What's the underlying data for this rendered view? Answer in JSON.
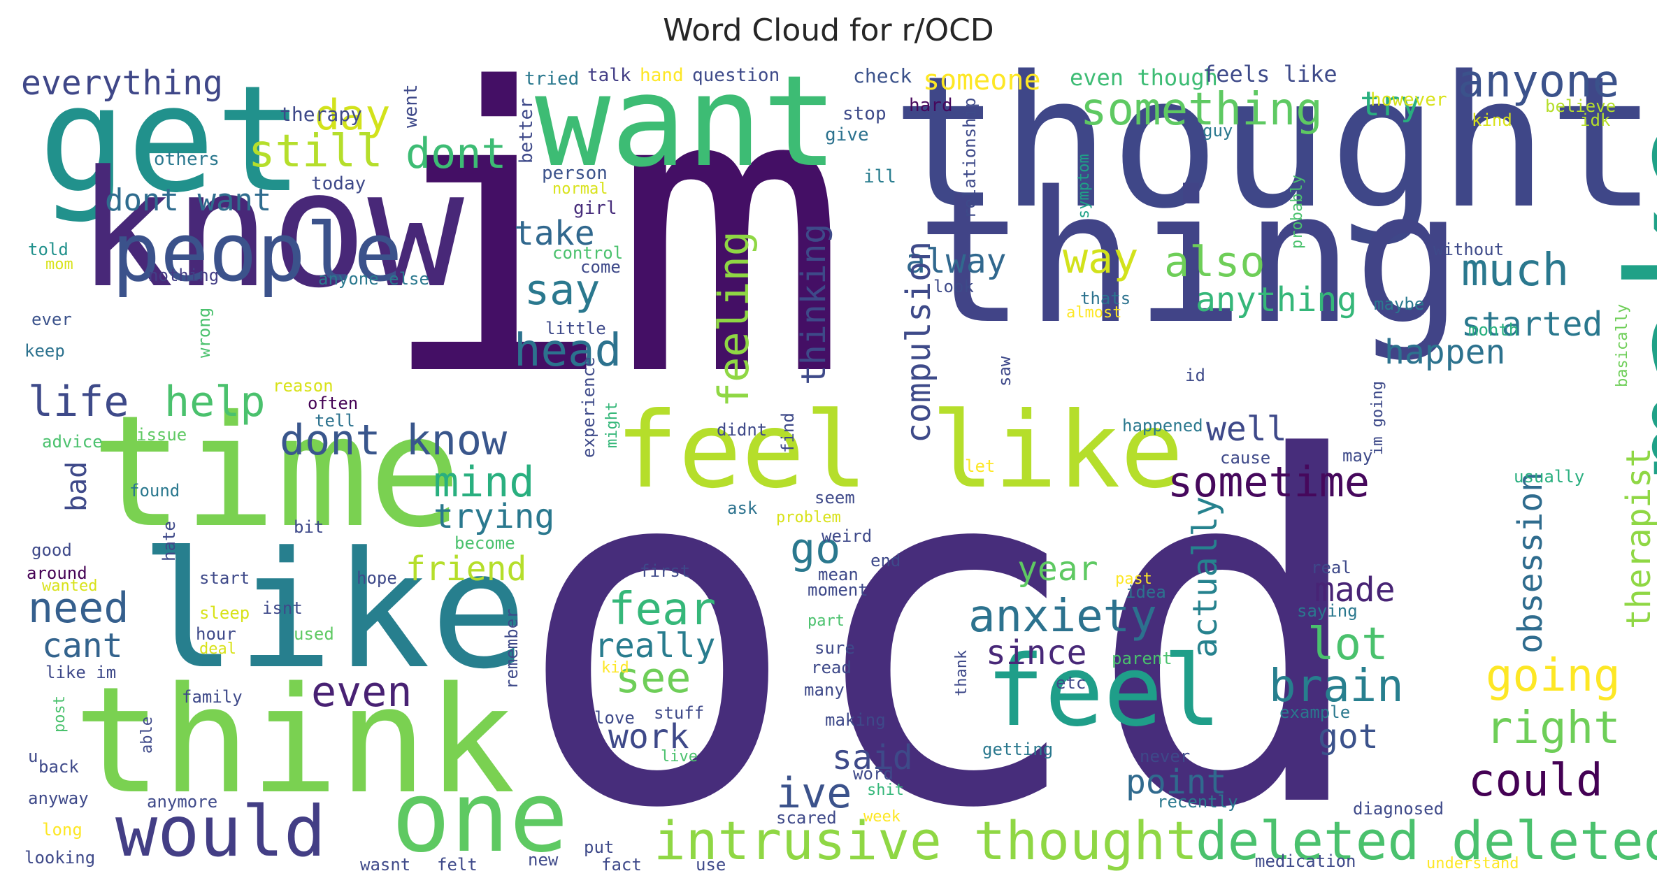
{
  "chart_data": {
    "type": "wordcloud",
    "title": "Word Cloud for r/OCD",
    "words": [
      {
        "text": "ocd",
        "c": "#472d7b"
      },
      {
        "text": "im",
        "c": "#440f65"
      },
      {
        "text": "thought",
        "c": "#3f4788"
      },
      {
        "text": "want",
        "c": "#3dbc74"
      },
      {
        "text": "get",
        "c": "#21918c"
      },
      {
        "text": "know",
        "c": "#482878"
      },
      {
        "text": "thing",
        "c": "#414487"
      },
      {
        "text": "make",
        "c": "#1fa187"
      },
      {
        "text": "time",
        "c": "#7ad151"
      },
      {
        "text": "like",
        "c": "#277f8e"
      },
      {
        "text": "think",
        "c": "#7ad151"
      },
      {
        "text": "feel like",
        "c": "#b5de2b"
      },
      {
        "text": "feel",
        "c": "#1f9e89"
      },
      {
        "text": "one",
        "c": "#5ec962"
      },
      {
        "text": "people",
        "c": "#3b528b"
      },
      {
        "text": "would",
        "c": "#433e85"
      },
      {
        "text": "intrusive thought",
        "c": "#8fd744"
      },
      {
        "text": "deleted deleted",
        "c": "#4ac16d"
      },
      {
        "text": "anxiety",
        "c": "#2c728e"
      },
      {
        "text": "something",
        "c": "#5ec962"
      },
      {
        "text": "anyone",
        "c": "#3b528b"
      },
      {
        "text": "everything",
        "c": "#3f4788"
      },
      {
        "text": "day",
        "c": "#d2e21b"
      },
      {
        "text": "still",
        "c": "#b5de2b"
      },
      {
        "text": "dont",
        "c": "#3dbc74"
      },
      {
        "text": "try",
        "c": "#29af7f"
      },
      {
        "text": "much",
        "c": "#2a788e"
      },
      {
        "text": "also",
        "c": "#6ece58"
      },
      {
        "text": "way",
        "c": "#d2e21b"
      },
      {
        "text": "say",
        "c": "#2a788e"
      },
      {
        "text": "head",
        "c": "#2c728e"
      },
      {
        "text": "take",
        "c": "#31688e"
      },
      {
        "text": "life",
        "c": "#3e4a89"
      },
      {
        "text": "help",
        "c": "#4ac16d"
      },
      {
        "text": "dont know",
        "c": "#39568c"
      },
      {
        "text": "mind",
        "c": "#29af7f"
      },
      {
        "text": "sometime",
        "c": "#46085c"
      },
      {
        "text": "need",
        "c": "#355f8d"
      },
      {
        "text": "trying",
        "c": "#2a788e"
      },
      {
        "text": "friend",
        "c": "#b5de2b"
      },
      {
        "text": "go",
        "c": "#2a788e"
      },
      {
        "text": "year",
        "c": "#5ec962"
      },
      {
        "text": "fear",
        "c": "#35b779"
      },
      {
        "text": "lot",
        "c": "#4ac16d"
      },
      {
        "text": "brain",
        "c": "#277f8e"
      },
      {
        "text": "going",
        "c": "#fde725"
      },
      {
        "text": "right",
        "c": "#6ece58"
      },
      {
        "text": "could",
        "c": "#440154"
      },
      {
        "text": "see",
        "c": "#6ece58"
      },
      {
        "text": "even",
        "c": "#482173"
      },
      {
        "text": "since",
        "c": "#482878"
      },
      {
        "text": "cant",
        "c": "#33638d"
      },
      {
        "text": "really",
        "c": "#287c8e"
      },
      {
        "text": "work",
        "c": "#3e4989"
      },
      {
        "text": "ive",
        "c": "#3b528b"
      },
      {
        "text": "said",
        "c": "#3e4a89"
      },
      {
        "text": "point",
        "c": "#306a8e"
      },
      {
        "text": "made",
        "c": "#482475"
      },
      {
        "text": "got",
        "c": "#3b528b"
      },
      {
        "text": "well",
        "c": "#3e4989"
      },
      {
        "text": "happen",
        "c": "#2c728e"
      },
      {
        "text": "started",
        "c": "#2a788e"
      },
      {
        "text": "anything",
        "c": "#35b779"
      },
      {
        "text": "alway",
        "c": "#31688e"
      },
      {
        "text": "dont want",
        "c": "#2f6c8e"
      },
      {
        "text": "compulsion",
        "c": "#3e4a89"
      },
      {
        "text": "feeling",
        "c": "#8fd744"
      },
      {
        "text": "thinking",
        "c": "#3e4a89"
      },
      {
        "text": "actually",
        "c": "#26828e"
      },
      {
        "text": "obsession",
        "c": "#2f6c8e"
      },
      {
        "text": "therapist",
        "c": "#8fd744"
      },
      {
        "text": "bad",
        "c": "#3e4989"
      },
      {
        "text": "someone",
        "c": "#fde725"
      },
      {
        "text": "even though",
        "c": "#3dbc74"
      },
      {
        "text": "feels like",
        "c": "#3e4a89"
      },
      {
        "text": "however",
        "c": "#d8e219"
      },
      {
        "text": "tried",
        "c": "#2a788e"
      },
      {
        "text": "talk",
        "c": "#433e85"
      },
      {
        "text": "hand",
        "c": "#fde725"
      },
      {
        "text": "question",
        "c": "#3e4a89"
      },
      {
        "text": "check",
        "c": "#3b528b"
      },
      {
        "text": "hard",
        "c": "#46085c"
      },
      {
        "text": "stop",
        "c": "#3e4a89"
      },
      {
        "text": "give",
        "c": "#2c728e"
      },
      {
        "text": "therapy",
        "c": "#3e4989"
      },
      {
        "text": "went",
        "c": "#3e4989"
      },
      {
        "text": "others",
        "c": "#2a788e"
      },
      {
        "text": "better",
        "c": "#3e4989"
      },
      {
        "text": "person",
        "c": "#3b528b"
      },
      {
        "text": "ill",
        "c": "#287c8e"
      },
      {
        "text": "today",
        "c": "#3e4989"
      },
      {
        "text": "normal",
        "c": "#d8e219"
      },
      {
        "text": "girl",
        "c": "#472d7b"
      },
      {
        "text": "relationship",
        "c": "#3e4a89"
      },
      {
        "text": "symptom",
        "c": "#1fa187"
      },
      {
        "text": "guy",
        "c": "#2a788e"
      },
      {
        "text": "believe",
        "c": "#b5de2b"
      },
      {
        "text": "kind",
        "c": "#d8e219"
      },
      {
        "text": "idk",
        "c": "#b5de2b"
      },
      {
        "text": "told",
        "c": "#21918c"
      },
      {
        "text": "mom",
        "c": "#d8e219"
      },
      {
        "text": "control",
        "c": "#4ac16d"
      },
      {
        "text": "come",
        "c": "#3e4989"
      },
      {
        "text": "nothing",
        "c": "#433e85"
      },
      {
        "text": "anyone else",
        "c": "#2a788e"
      },
      {
        "text": "probably",
        "c": "#4ac16d"
      },
      {
        "text": "without",
        "c": "#3e4a89"
      },
      {
        "text": "look",
        "c": "#3e4a89"
      },
      {
        "text": "thats",
        "c": "#2c728e"
      },
      {
        "text": "almost",
        "c": "#fde725"
      },
      {
        "text": "maybe",
        "c": "#2a788e"
      },
      {
        "text": "month",
        "c": "#29af7f"
      },
      {
        "text": "ever",
        "c": "#3b528b"
      },
      {
        "text": "keep",
        "c": "#2c728e"
      },
      {
        "text": "wrong",
        "c": "#4ac16d"
      },
      {
        "text": "little",
        "c": "#3e4989"
      },
      {
        "text": "reason",
        "c": "#d8e219"
      },
      {
        "text": "often",
        "c": "#440154"
      },
      {
        "text": "tell",
        "c": "#2c728e"
      },
      {
        "text": "experience",
        "c": "#3e4a89"
      },
      {
        "text": "might",
        "c": "#35b779"
      },
      {
        "text": "saw",
        "c": "#3e4989"
      },
      {
        "text": "id",
        "c": "#3e4a89"
      },
      {
        "text": "im going",
        "c": "#3e4a89"
      },
      {
        "text": "basically",
        "c": "#6ece58"
      },
      {
        "text": "advice",
        "c": "#4ac16d"
      },
      {
        "text": "issue",
        "c": "#5ec962"
      },
      {
        "text": "didnt",
        "c": "#3e4989"
      },
      {
        "text": "find",
        "c": "#3e4989"
      },
      {
        "text": "happened",
        "c": "#2a788e"
      },
      {
        "text": "may",
        "c": "#3e4a89"
      },
      {
        "text": "cause",
        "c": "#3e4989"
      },
      {
        "text": "let",
        "c": "#fde725"
      },
      {
        "text": "usually",
        "c": "#29af7f"
      },
      {
        "text": "found",
        "c": "#2a788e"
      },
      {
        "text": "hate",
        "c": "#3e4989"
      },
      {
        "text": "seem",
        "c": "#3e4989"
      },
      {
        "text": "ask",
        "c": "#2c728e"
      },
      {
        "text": "problem",
        "c": "#d8e219"
      },
      {
        "text": "weird",
        "c": "#3e4989"
      },
      {
        "text": "good",
        "c": "#3e4989"
      },
      {
        "text": "bit",
        "c": "#3e4989"
      },
      {
        "text": "become",
        "c": "#4ac16d"
      },
      {
        "text": "end",
        "c": "#3e4989"
      },
      {
        "text": "around",
        "c": "#440154"
      },
      {
        "text": "start",
        "c": "#3e4989"
      },
      {
        "text": "hope",
        "c": "#3e4989"
      },
      {
        "text": "first",
        "c": "#3e4989"
      },
      {
        "text": "mean",
        "c": "#3e4989"
      },
      {
        "text": "real",
        "c": "#3e4989"
      },
      {
        "text": "wanted",
        "c": "#d8e219"
      },
      {
        "text": "moment",
        "c": "#3e4989"
      },
      {
        "text": "idea",
        "c": "#2c728e"
      },
      {
        "text": "past",
        "c": "#fde725"
      },
      {
        "text": "sleep",
        "c": "#d8e219"
      },
      {
        "text": "isnt",
        "c": "#3e4989"
      },
      {
        "text": "remember",
        "c": "#3e4989"
      },
      {
        "text": "saying",
        "c": "#2a788e"
      },
      {
        "text": "part",
        "c": "#4ac16d"
      },
      {
        "text": "hour",
        "c": "#3e4989"
      },
      {
        "text": "used",
        "c": "#5ec962"
      },
      {
        "text": "deal",
        "c": "#d8e219"
      },
      {
        "text": "sure",
        "c": "#3e4989"
      },
      {
        "text": "parent",
        "c": "#4ac16d"
      },
      {
        "text": "etc",
        "c": "#3e4989"
      },
      {
        "text": "like im",
        "c": "#3e4989"
      },
      {
        "text": "kid",
        "c": "#fde725"
      },
      {
        "text": "read",
        "c": "#3e4989"
      },
      {
        "text": "thank",
        "c": "#3e4989"
      },
      {
        "text": "post",
        "c": "#4ac16d"
      },
      {
        "text": "family",
        "c": "#3e4989"
      },
      {
        "text": "many",
        "c": "#3e4989"
      },
      {
        "text": "stuff",
        "c": "#3e4989"
      },
      {
        "text": "love",
        "c": "#3e4989"
      },
      {
        "text": "example",
        "c": "#2a788e"
      },
      {
        "text": "able",
        "c": "#3e4989"
      },
      {
        "text": "making",
        "c": "#3e4989"
      },
      {
        "text": "u",
        "c": "#3e4989"
      },
      {
        "text": "live",
        "c": "#4ac16d"
      },
      {
        "text": "getting",
        "c": "#2a788e"
      },
      {
        "text": "never",
        "c": "#3e4989"
      },
      {
        "text": "back",
        "c": "#3e4989"
      },
      {
        "text": "word",
        "c": "#3e4989"
      },
      {
        "text": "anyway",
        "c": "#3e4989"
      },
      {
        "text": "anymore",
        "c": "#3e4989"
      },
      {
        "text": "shit",
        "c": "#35b779"
      },
      {
        "text": "recently",
        "c": "#2a788e"
      },
      {
        "text": "scared",
        "c": "#3e4989"
      },
      {
        "text": "week",
        "c": "#fde725"
      },
      {
        "text": "diagnosed",
        "c": "#3e4989"
      },
      {
        "text": "long",
        "c": "#fde725"
      },
      {
        "text": "put",
        "c": "#3e4989"
      },
      {
        "text": "looking",
        "c": "#3e4989"
      },
      {
        "text": "wasnt",
        "c": "#3e4989"
      },
      {
        "text": "felt",
        "c": "#3e4989"
      },
      {
        "text": "new",
        "c": "#3e4989"
      },
      {
        "text": "fact",
        "c": "#3e4989"
      },
      {
        "text": "use",
        "c": "#3e4989"
      },
      {
        "text": "medication",
        "c": "#3e4989"
      },
      {
        "text": "understand",
        "c": "#fde725"
      }
    ]
  }
}
